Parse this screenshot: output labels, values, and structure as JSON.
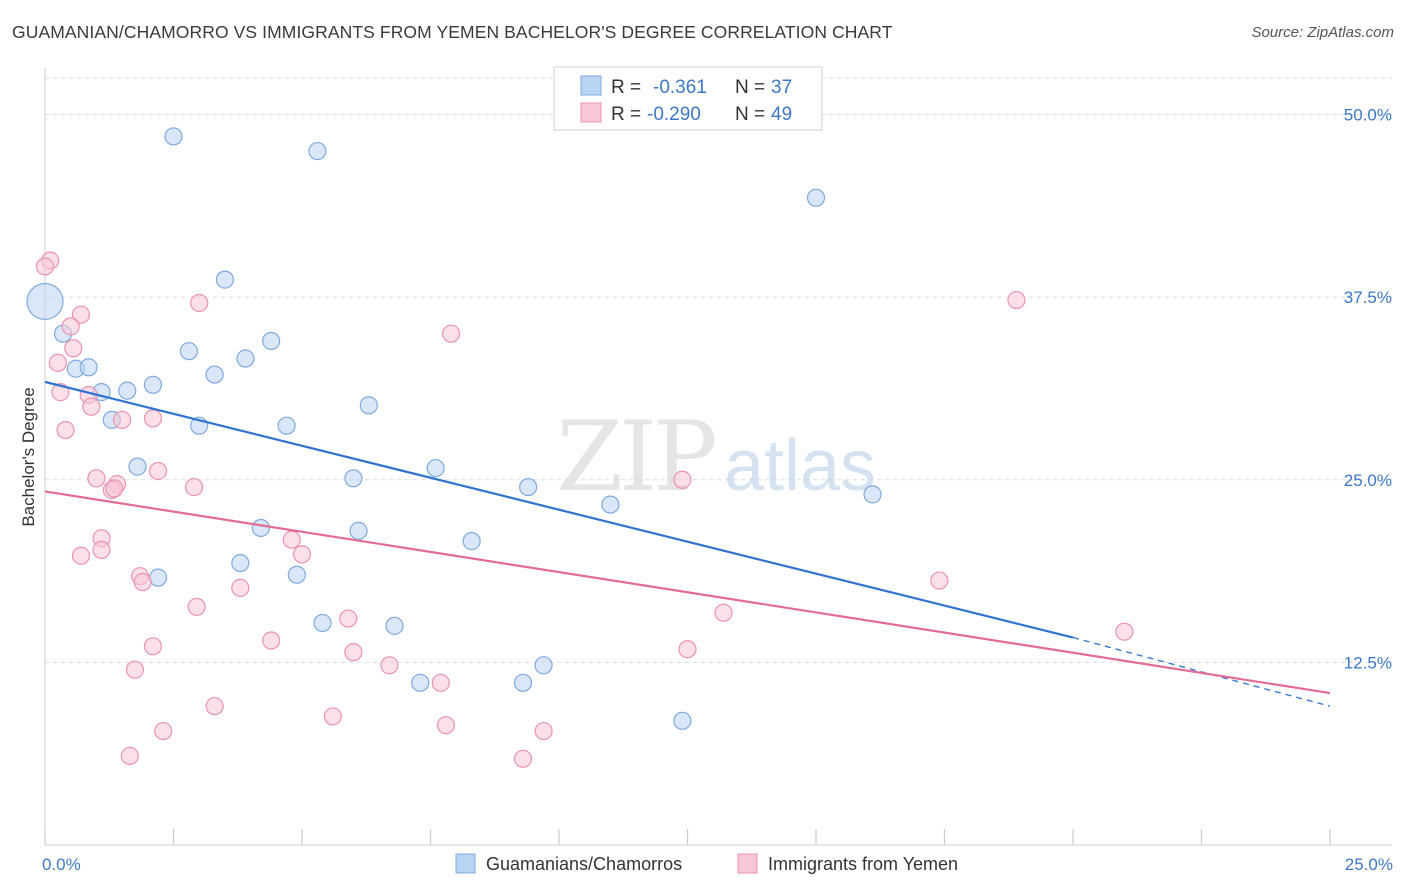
{
  "title": "GUAMANIAN/CHAMORRO VS IMMIGRANTS FROM YEMEN BACHELOR'S DEGREE CORRELATION CHART",
  "source": "Source: ZipAtlas.com",
  "watermark": {
    "zip": "ZIP",
    "atlas": "atlas"
  },
  "colors": {
    "blue_fill": "#b9d3f2",
    "blue_stroke": "#7eaae0",
    "blue_line": "#2e74d0",
    "pink_fill": "#f8c6d5",
    "pink_stroke": "#ec93b1",
    "pink_line": "#e36b95",
    "tick_text": "#3d78c8",
    "grid": "#dcdcdc"
  },
  "legend": {
    "rows": [
      {
        "r_label": "R =",
        "r_value": "-0.361",
        "n_label": "N =",
        "n_value": "37",
        "series": "blue"
      },
      {
        "r_label": "R =",
        "r_value": "-0.290",
        "n_label": "N =",
        "n_value": "49",
        "series": "pink"
      }
    ]
  },
  "chart_data": {
    "type": "scatter",
    "xlabel": "",
    "ylabel": "Bachelor's Degree",
    "xlim": [
      0,
      25
    ],
    "ylim": [
      0,
      52.5
    ],
    "x_tick_labels": [
      "0.0%",
      "25.0%"
    ],
    "y_ticks": [
      12.5,
      25.0,
      37.5,
      50.0
    ],
    "y_tick_labels": [
      "12.5%",
      "25.0%",
      "37.5%",
      "50.0%"
    ],
    "grid": "horizontal dashed",
    "legend_position": "bottom",
    "series": [
      {
        "name": "Guamanians/Chamorros",
        "color": "blue",
        "points": [
          [
            0.0,
            37.2,
            "large"
          ],
          [
            2.5,
            48.5
          ],
          [
            5.3,
            47.5
          ],
          [
            3.5,
            38.7
          ],
          [
            15.0,
            44.3
          ],
          [
            0.35,
            35.0
          ],
          [
            4.4,
            34.5
          ],
          [
            2.8,
            33.8
          ],
          [
            3.9,
            33.3
          ],
          [
            0.6,
            32.6
          ],
          [
            0.85,
            32.7
          ],
          [
            3.3,
            32.2
          ],
          [
            2.1,
            31.5
          ],
          [
            1.6,
            31.1
          ],
          [
            1.1,
            31.0
          ],
          [
            6.3,
            30.1
          ],
          [
            1.3,
            29.1
          ],
          [
            3.0,
            28.7
          ],
          [
            4.7,
            28.7
          ],
          [
            1.8,
            25.9
          ],
          [
            7.6,
            25.8
          ],
          [
            6.0,
            25.1
          ],
          [
            9.4,
            24.5
          ],
          [
            11.0,
            23.3
          ],
          [
            16.1,
            24.0
          ],
          [
            4.2,
            21.7
          ],
          [
            6.1,
            21.5
          ],
          [
            8.3,
            20.8
          ],
          [
            3.8,
            19.3
          ],
          [
            2.2,
            18.3
          ],
          [
            4.9,
            18.5
          ],
          [
            5.4,
            15.2
          ],
          [
            6.8,
            15.0
          ],
          [
            9.7,
            12.3
          ],
          [
            7.3,
            11.1
          ],
          [
            9.3,
            11.1
          ],
          [
            12.4,
            8.5
          ]
        ]
      },
      {
        "name": "Immigrants from Yemen",
        "color": "pink",
        "points": [
          [
            0.1,
            40.0
          ],
          [
            0.0,
            39.6
          ],
          [
            3.0,
            37.1
          ],
          [
            18.9,
            37.3
          ],
          [
            0.7,
            36.3
          ],
          [
            0.5,
            35.5
          ],
          [
            7.9,
            35.0
          ],
          [
            0.55,
            34.0
          ],
          [
            0.25,
            33.0
          ],
          [
            0.3,
            31.0
          ],
          [
            0.85,
            30.8
          ],
          [
            0.9,
            30.0
          ],
          [
            1.5,
            29.1
          ],
          [
            2.1,
            29.2
          ],
          [
            0.4,
            28.4
          ],
          [
            2.2,
            25.6
          ],
          [
            1.0,
            25.1
          ],
          [
            1.4,
            24.7
          ],
          [
            1.3,
            24.3
          ],
          [
            1.35,
            24.4
          ],
          [
            2.9,
            24.5
          ],
          [
            12.4,
            25.0
          ],
          [
            1.1,
            21.0
          ],
          [
            4.8,
            20.9
          ],
          [
            1.1,
            20.2
          ],
          [
            0.7,
            19.8
          ],
          [
            5.0,
            19.9
          ],
          [
            1.85,
            18.4
          ],
          [
            1.9,
            18.0
          ],
          [
            3.8,
            17.6
          ],
          [
            17.4,
            18.1
          ],
          [
            2.95,
            16.3
          ],
          [
            13.2,
            15.9
          ],
          [
            5.9,
            15.5
          ],
          [
            21.0,
            14.6
          ],
          [
            4.4,
            14.0
          ],
          [
            2.1,
            13.6
          ],
          [
            6.0,
            13.2
          ],
          [
            12.5,
            13.4
          ],
          [
            6.7,
            12.3
          ],
          [
            1.75,
            12.0
          ],
          [
            3.3,
            9.5
          ],
          [
            7.7,
            11.1
          ],
          [
            5.6,
            8.8
          ],
          [
            7.8,
            8.2
          ],
          [
            2.3,
            7.8
          ],
          [
            9.7,
            7.8
          ],
          [
            1.65,
            6.1
          ],
          [
            9.3,
            5.9
          ]
        ]
      }
    ],
    "trend_lines": [
      {
        "series": "Guamanians/Chamorros",
        "x1": 0,
        "y1": 31.7,
        "x2": 20.0,
        "y2": 14.2,
        "dashed_to_x": 25.0,
        "dashed_to_y": 9.5
      },
      {
        "series": "Immigrants from Yemen",
        "x1": 0,
        "y1": 24.2,
        "x2": 25.0,
        "y2": 10.4
      }
    ]
  }
}
